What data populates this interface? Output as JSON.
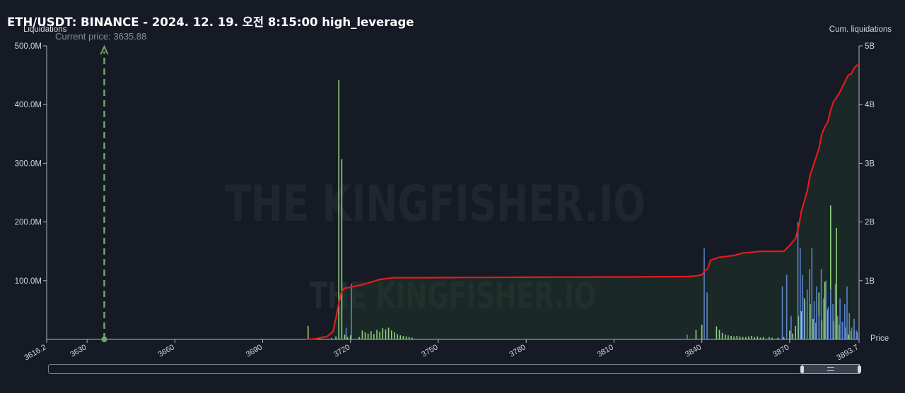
{
  "header": {
    "title": "ETH/USDT: BINANCE - 2024. 12. 19. 오전 8:15:00 high_leverage",
    "current_price_text": "Current price: 3635.88"
  },
  "chart_data": {
    "type": "bar",
    "title": "ETH/USDT: BINANCE - 2024. 12. 19. 오전 8:15:00 high_leverage",
    "ylabel": "Liquidations",
    "y2label": "Cum. liquidations",
    "xlabel": "Price",
    "xlim": [
      3616.2,
      3893.7
    ],
    "ylim": [
      0,
      500000000
    ],
    "y2lim": [
      0,
      5000000000
    ],
    "x_ticks": [
      "3616.2",
      "3630",
      "3660",
      "3690",
      "3720",
      "3750",
      "3780",
      "3810",
      "3840",
      "3870",
      "3893.7"
    ],
    "y_ticks": [
      "500.0M",
      "400.0M",
      "300.0M",
      "200.0M",
      "100.0M"
    ],
    "y2_ticks": [
      "5B",
      "4B",
      "3B",
      "2B",
      "1B"
    ],
    "current_price": 3635.88,
    "grid": false,
    "colors": {
      "long_bars": "#8fd17a",
      "short_bars": "#5b83c7",
      "cumulative_line": "#e31b1b",
      "current_price_line": "#6fa86a"
    },
    "series": [
      {
        "name": "green",
        "x": [
          3705.5,
          3713.5,
          3715,
          3716,
          3717,
          3718,
          3719,
          3720,
          3723,
          3724,
          3725,
          3726,
          3727,
          3728,
          3729,
          3730,
          3731,
          3732,
          3733,
          3734,
          3735,
          3736,
          3737,
          3738,
          3739,
          3740,
          3741,
          3838,
          3840,
          3845,
          3846,
          3847,
          3848,
          3849,
          3850,
          3851,
          3852,
          3853,
          3854,
          3855,
          3856,
          3857,
          3858,
          3859,
          3860,
          3861,
          3863,
          3864,
          3866,
          3868,
          3870,
          3871,
          3872,
          3873,
          3874,
          3875,
          3876,
          3877,
          3878,
          3879,
          3880,
          3881,
          3882,
          3883,
          3884,
          3885,
          3886,
          3887,
          3888,
          3889,
          3890,
          3891,
          3892,
          3893
        ],
        "values": [
          23,
          2,
          5,
          442,
          307,
          8,
          4,
          7,
          4,
          15,
          12,
          10,
          14,
          9,
          16,
          13,
          19,
          17,
          20,
          15,
          12,
          9,
          7,
          6,
          5,
          4,
          3,
          16,
          25,
          22,
          16,
          11,
          8,
          7,
          6,
          5,
          6,
          5,
          4,
          4,
          5,
          6,
          4,
          5,
          3,
          4,
          4,
          3,
          3,
          4,
          15,
          10,
          23,
          40,
          48,
          70,
          44,
          60,
          35,
          28,
          80,
          32,
          98,
          51,
          228,
          31,
          190,
          25,
          29,
          20,
          8,
          14,
          17,
          12
        ]
      },
      {
        "name": "blue",
        "x": [
          3718.5,
          3720.3,
          3835,
          3840.8,
          3841.8,
          3867.5,
          3869,
          3870.5,
          3872.8,
          3873.6,
          3874.4,
          3875.2,
          3876,
          3876.8,
          3877.6,
          3878.4,
          3879.2,
          3880,
          3880.8,
          3881.6,
          3882.4,
          3883.2,
          3884,
          3884.8,
          3885.6,
          3886.4,
          3887.2,
          3888,
          3888.8,
          3889.6,
          3890.4,
          3891.2,
          3892,
          3892.8
        ],
        "values": [
          20,
          95,
          8,
          155,
          80,
          90,
          110,
          40,
          200,
          155,
          110,
          65,
          85,
          120,
          155,
          65,
          90,
          40,
          120,
          70,
          100,
          55,
          85,
          60,
          95,
          40,
          70,
          30,
          60,
          90,
          45,
          20,
          35,
          15
        ]
      },
      {
        "name": "cumulative",
        "x": [
          3705,
          3708,
          3712,
          3714,
          3715,
          3716,
          3717,
          3718,
          3719,
          3720,
          3722,
          3724,
          3726,
          3728,
          3730,
          3733,
          3735,
          3738,
          3741,
          3745,
          3760,
          3790,
          3820,
          3835,
          3838,
          3840,
          3841,
          3842,
          3843,
          3846,
          3848,
          3851,
          3854,
          3860,
          3866,
          3868,
          3869,
          3870,
          3872,
          3873,
          3874,
          3875,
          3876,
          3877,
          3878,
          3879,
          3880,
          3881,
          3882,
          3883,
          3884,
          3885,
          3886,
          3887,
          3888,
          3889,
          3890,
          3891,
          3892,
          3893,
          3893.7
        ],
        "values": [
          0.002,
          0.01,
          0.05,
          0.13,
          0.36,
          0.62,
          0.82,
          0.87,
          0.88,
          0.89,
          0.91,
          0.93,
          0.96,
          0.99,
          1.02,
          1.04,
          1.05,
          1.05,
          1.05,
          1.05,
          1.055,
          1.06,
          1.065,
          1.07,
          1.08,
          1.1,
          1.17,
          1.2,
          1.35,
          1.4,
          1.41,
          1.43,
          1.47,
          1.5,
          1.5,
          1.5,
          1.55,
          1.6,
          1.72,
          1.9,
          2.18,
          2.35,
          2.53,
          2.8,
          2.95,
          3.1,
          3.25,
          3.5,
          3.62,
          3.7,
          3.9,
          4.05,
          4.12,
          4.2,
          4.3,
          4.4,
          4.5,
          4.52,
          4.62,
          4.67,
          4.68
        ]
      }
    ],
    "watermark": "THE KINGFISHER.IO"
  }
}
